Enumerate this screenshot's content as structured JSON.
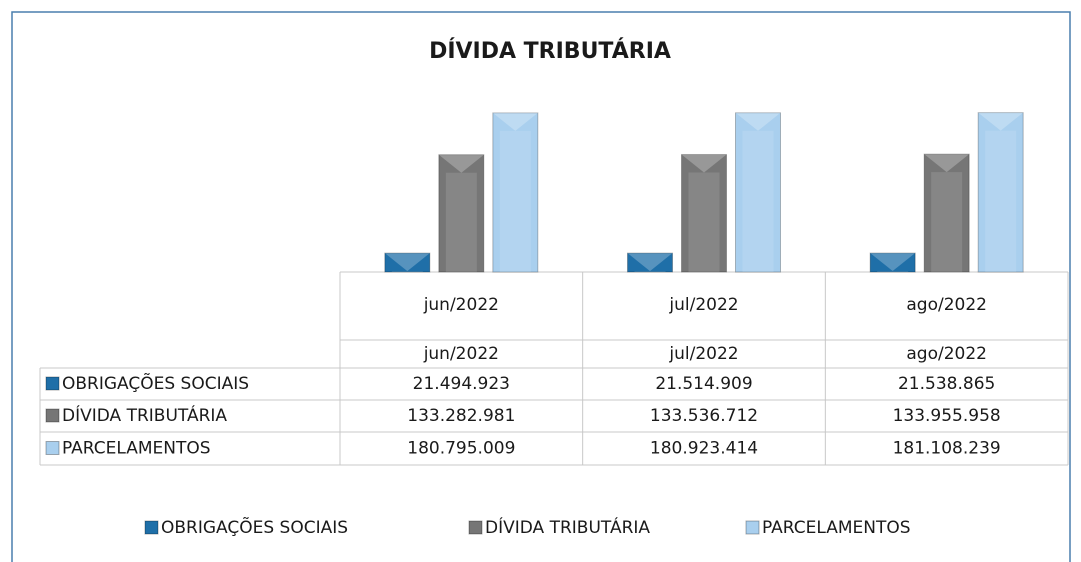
{
  "chart_data": {
    "type": "bar",
    "title": "DÍVIDA TRIBUTÁRIA",
    "categories": [
      "jun/2022",
      "jul/2022",
      "ago/2022"
    ],
    "series": [
      {
        "name": "OBRIGAÇÕES SOCIAIS",
        "color": "#1f6fa8",
        "values": [
          21494923,
          21514909,
          21538865
        ],
        "value_labels": [
          "21.494.923",
          "21.514.909",
          "21.538.865"
        ]
      },
      {
        "name": "DÍVIDA TRIBUTÁRIA",
        "color": "#767676",
        "values": [
          133282981,
          133536712,
          133955958
        ],
        "value_labels": [
          "133.282.981",
          "133.536.712",
          "133.955.958"
        ]
      },
      {
        "name": "PARCELAMENTOS",
        "color": "#a9cfee",
        "values": [
          180795009,
          180923414,
          181108239
        ],
        "value_labels": [
          "180.795.009",
          "180.923.414",
          "181.108.239"
        ]
      }
    ],
    "ylim": [
      0,
      200000000
    ]
  }
}
